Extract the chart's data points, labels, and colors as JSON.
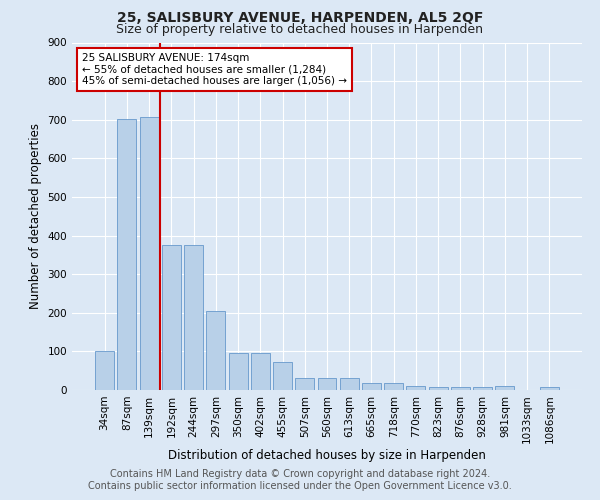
{
  "title": "25, SALISBURY AVENUE, HARPENDEN, AL5 2QF",
  "subtitle": "Size of property relative to detached houses in Harpenden",
  "xlabel": "Distribution of detached houses by size in Harpenden",
  "ylabel": "Number of detached properties",
  "categories": [
    "34sqm",
    "87sqm",
    "139sqm",
    "192sqm",
    "244sqm",
    "297sqm",
    "350sqm",
    "402sqm",
    "455sqm",
    "507sqm",
    "560sqm",
    "613sqm",
    "665sqm",
    "718sqm",
    "770sqm",
    "823sqm",
    "876sqm",
    "928sqm",
    "981sqm",
    "1033sqm",
    "1086sqm"
  ],
  "values": [
    101,
    703,
    706,
    375,
    375,
    205,
    97,
    97,
    72,
    30,
    30,
    30,
    18,
    18,
    10,
    8,
    8,
    8,
    10,
    0,
    8
  ],
  "bar_color": "#b8d0e8",
  "bar_edge_color": "#6699cc",
  "property_line_color": "#cc0000",
  "annotation_text": "25 SALISBURY AVENUE: 174sqm\n← 55% of detached houses are smaller (1,284)\n45% of semi-detached houses are larger (1,056) →",
  "annotation_box_color": "#ffffff",
  "annotation_box_edge": "#cc0000",
  "ylim": [
    0,
    900
  ],
  "yticks": [
    0,
    100,
    200,
    300,
    400,
    500,
    600,
    700,
    800,
    900
  ],
  "footer_line1": "Contains HM Land Registry data © Crown copyright and database right 2024.",
  "footer_line2": "Contains public sector information licensed under the Open Government Licence v3.0.",
  "bg_color": "#dce8f5",
  "plot_bg_color": "#dce8f5",
  "grid_color": "#ffffff",
  "title_fontsize": 10,
  "subtitle_fontsize": 9,
  "axis_label_fontsize": 8.5,
  "tick_fontsize": 7.5,
  "footer_fontsize": 7
}
